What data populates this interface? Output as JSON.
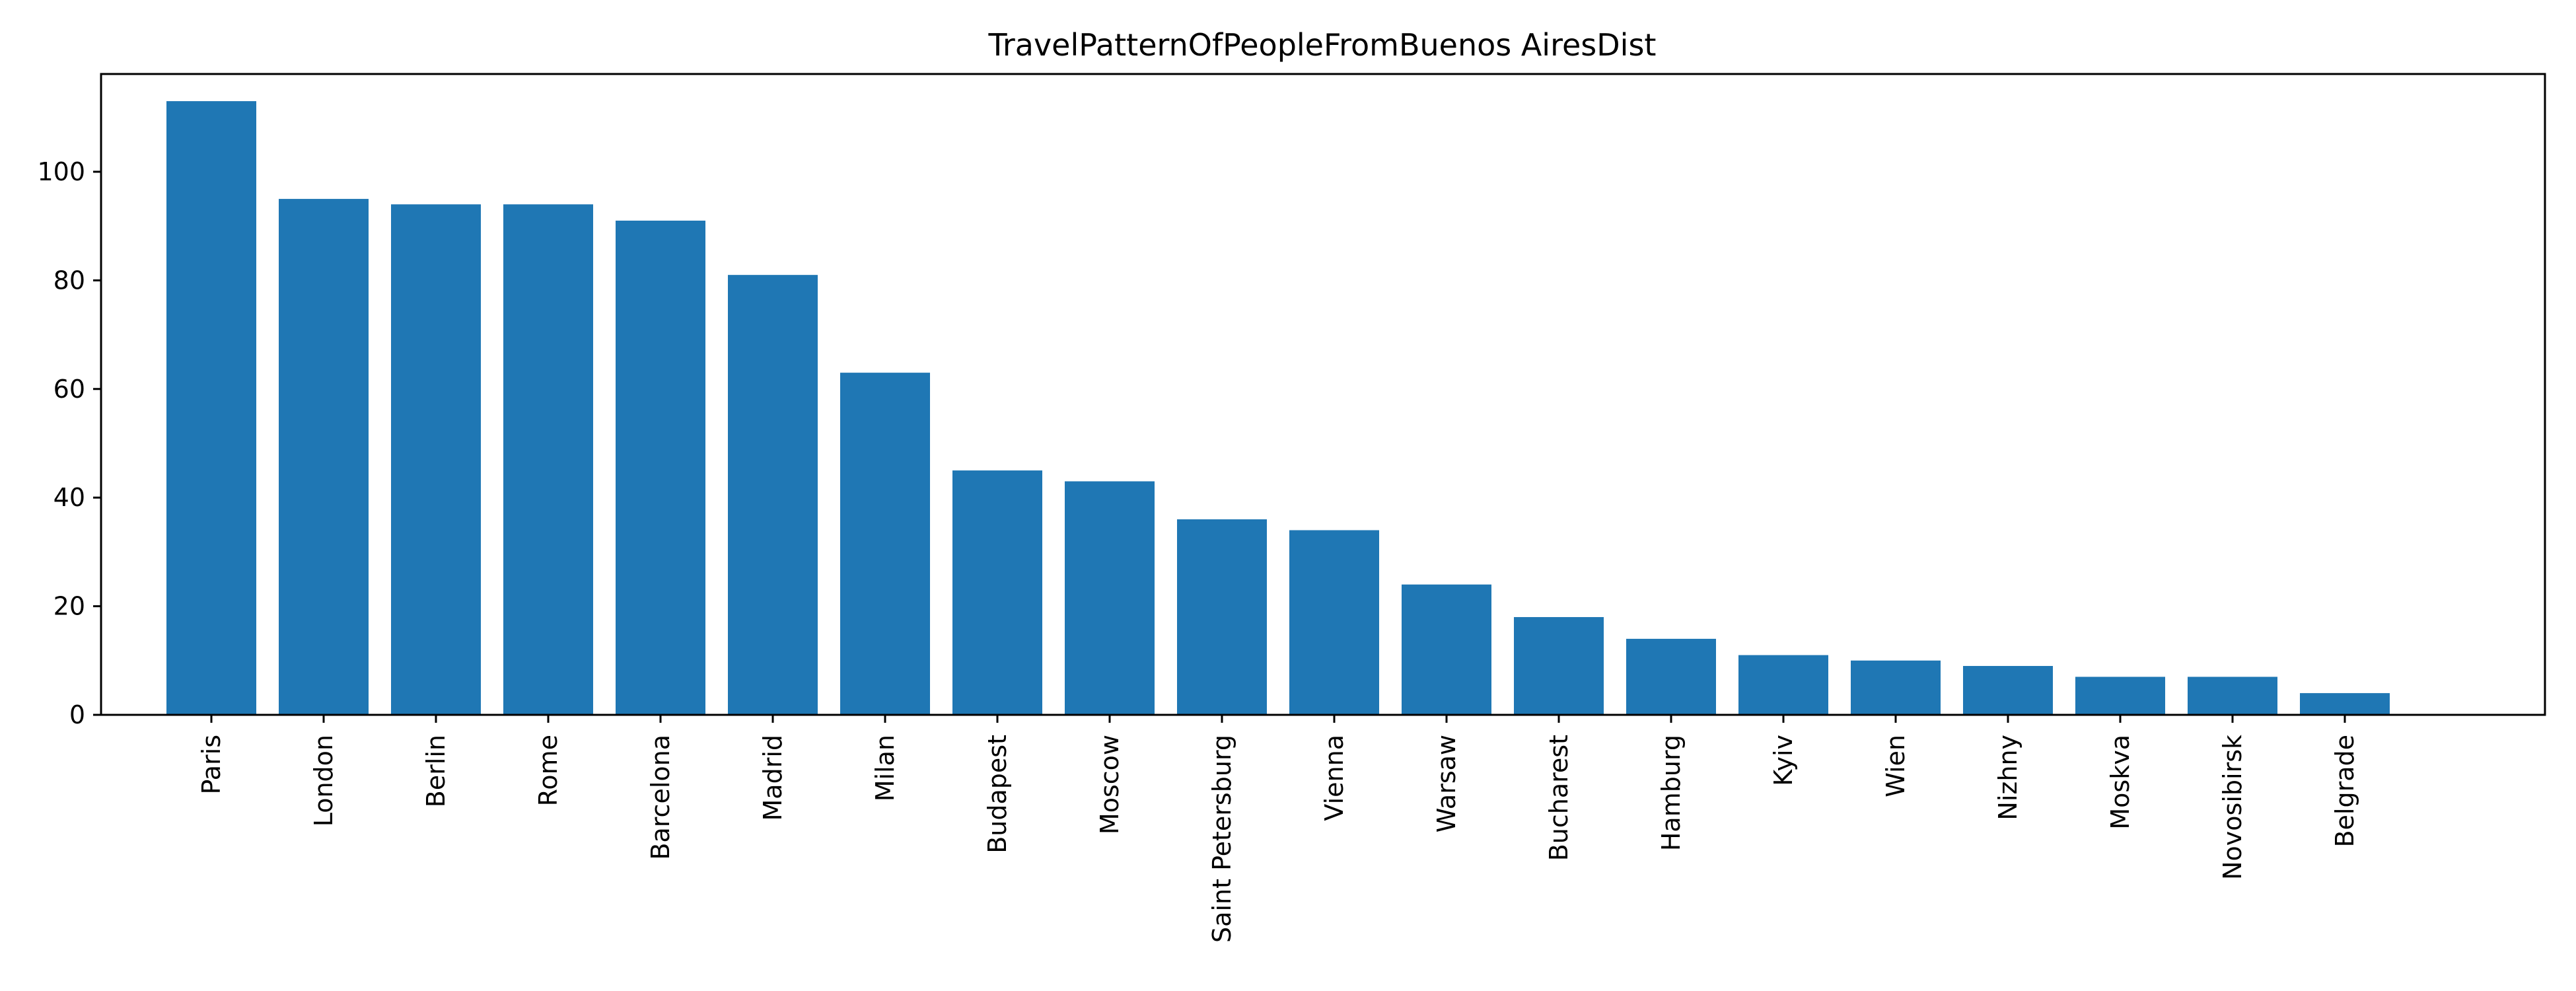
{
  "chart_data": {
    "type": "bar",
    "title": "TravelPatternOfPeopleFromBuenos AiresDist",
    "xlabel": "",
    "ylabel": "",
    "categories": [
      "Paris",
      "London",
      "Berlin",
      "Rome",
      "Barcelona",
      "Madrid",
      "Milan",
      "Budapest",
      "Moscow",
      "Saint Petersburg",
      "Vienna",
      "Warsaw",
      "Bucharest",
      "Hamburg",
      "Kyiv",
      "Wien",
      "Nizhny",
      "Moskva",
      "Novosibirsk",
      "Belgrade"
    ],
    "values": [
      113,
      95,
      94,
      94,
      91,
      81,
      63,
      45,
      43,
      36,
      34,
      24,
      18,
      14,
      11,
      10,
      9,
      7,
      7,
      4
    ],
    "ylim": [
      0,
      118
    ],
    "yticks": [
      0,
      20,
      40,
      60,
      80,
      100
    ],
    "x_tick_rotation": "vertical",
    "grid": false,
    "legend": "none",
    "colors": {
      "bar": "#1f77b4",
      "axis": "#000000"
    }
  }
}
